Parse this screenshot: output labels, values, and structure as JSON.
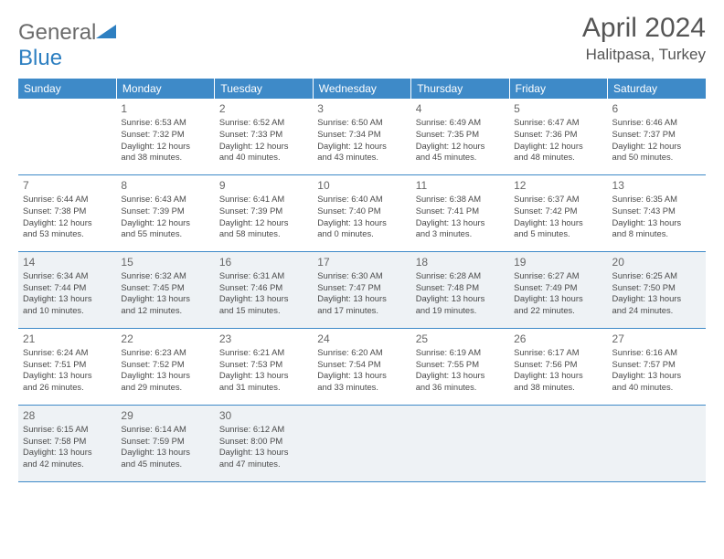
{
  "logo": {
    "part1": "General",
    "part2": "Blue"
  },
  "title": "April 2024",
  "location": "Halitpasa, Turkey",
  "header_bg": "#3e8ac8",
  "header_fg": "#ffffff",
  "shaded_bg": "#eef2f5",
  "border_color": "#3e8ac8",
  "text_color": "#4a4a4a",
  "columns": [
    "Sunday",
    "Monday",
    "Tuesday",
    "Wednesday",
    "Thursday",
    "Friday",
    "Saturday"
  ],
  "weeks": [
    {
      "shaded": false,
      "cells": [
        null,
        {
          "day": "1",
          "sunrise": "6:53 AM",
          "sunset": "7:32 PM",
          "daylight_h": "12",
          "daylight_m": "38"
        },
        {
          "day": "2",
          "sunrise": "6:52 AM",
          "sunset": "7:33 PM",
          "daylight_h": "12",
          "daylight_m": "40"
        },
        {
          "day": "3",
          "sunrise": "6:50 AM",
          "sunset": "7:34 PM",
          "daylight_h": "12",
          "daylight_m": "43"
        },
        {
          "day": "4",
          "sunrise": "6:49 AM",
          "sunset": "7:35 PM",
          "daylight_h": "12",
          "daylight_m": "45"
        },
        {
          "day": "5",
          "sunrise": "6:47 AM",
          "sunset": "7:36 PM",
          "daylight_h": "12",
          "daylight_m": "48"
        },
        {
          "day": "6",
          "sunrise": "6:46 AM",
          "sunset": "7:37 PM",
          "daylight_h": "12",
          "daylight_m": "50"
        }
      ]
    },
    {
      "shaded": false,
      "cells": [
        {
          "day": "7",
          "sunrise": "6:44 AM",
          "sunset": "7:38 PM",
          "daylight_h": "12",
          "daylight_m": "53"
        },
        {
          "day": "8",
          "sunrise": "6:43 AM",
          "sunset": "7:39 PM",
          "daylight_h": "12",
          "daylight_m": "55"
        },
        {
          "day": "9",
          "sunrise": "6:41 AM",
          "sunset": "7:39 PM",
          "daylight_h": "12",
          "daylight_m": "58"
        },
        {
          "day": "10",
          "sunrise": "6:40 AM",
          "sunset": "7:40 PM",
          "daylight_h": "13",
          "daylight_m": "0"
        },
        {
          "day": "11",
          "sunrise": "6:38 AM",
          "sunset": "7:41 PM",
          "daylight_h": "13",
          "daylight_m": "3"
        },
        {
          "day": "12",
          "sunrise": "6:37 AM",
          "sunset": "7:42 PM",
          "daylight_h": "13",
          "daylight_m": "5"
        },
        {
          "day": "13",
          "sunrise": "6:35 AM",
          "sunset": "7:43 PM",
          "daylight_h": "13",
          "daylight_m": "8"
        }
      ]
    },
    {
      "shaded": true,
      "cells": [
        {
          "day": "14",
          "sunrise": "6:34 AM",
          "sunset": "7:44 PM",
          "daylight_h": "13",
          "daylight_m": "10"
        },
        {
          "day": "15",
          "sunrise": "6:32 AM",
          "sunset": "7:45 PM",
          "daylight_h": "13",
          "daylight_m": "12"
        },
        {
          "day": "16",
          "sunrise": "6:31 AM",
          "sunset": "7:46 PM",
          "daylight_h": "13",
          "daylight_m": "15"
        },
        {
          "day": "17",
          "sunrise": "6:30 AM",
          "sunset": "7:47 PM",
          "daylight_h": "13",
          "daylight_m": "17"
        },
        {
          "day": "18",
          "sunrise": "6:28 AM",
          "sunset": "7:48 PM",
          "daylight_h": "13",
          "daylight_m": "19"
        },
        {
          "day": "19",
          "sunrise": "6:27 AM",
          "sunset": "7:49 PM",
          "daylight_h": "13",
          "daylight_m": "22"
        },
        {
          "day": "20",
          "sunrise": "6:25 AM",
          "sunset": "7:50 PM",
          "daylight_h": "13",
          "daylight_m": "24"
        }
      ]
    },
    {
      "shaded": false,
      "cells": [
        {
          "day": "21",
          "sunrise": "6:24 AM",
          "sunset": "7:51 PM",
          "daylight_h": "13",
          "daylight_m": "26"
        },
        {
          "day": "22",
          "sunrise": "6:23 AM",
          "sunset": "7:52 PM",
          "daylight_h": "13",
          "daylight_m": "29"
        },
        {
          "day": "23",
          "sunrise": "6:21 AM",
          "sunset": "7:53 PM",
          "daylight_h": "13",
          "daylight_m": "31"
        },
        {
          "day": "24",
          "sunrise": "6:20 AM",
          "sunset": "7:54 PM",
          "daylight_h": "13",
          "daylight_m": "33"
        },
        {
          "day": "25",
          "sunrise": "6:19 AM",
          "sunset": "7:55 PM",
          "daylight_h": "13",
          "daylight_m": "36"
        },
        {
          "day": "26",
          "sunrise": "6:17 AM",
          "sunset": "7:56 PM",
          "daylight_h": "13",
          "daylight_m": "38"
        },
        {
          "day": "27",
          "sunrise": "6:16 AM",
          "sunset": "7:57 PM",
          "daylight_h": "13",
          "daylight_m": "40"
        }
      ]
    },
    {
      "shaded": true,
      "cells": [
        {
          "day": "28",
          "sunrise": "6:15 AM",
          "sunset": "7:58 PM",
          "daylight_h": "13",
          "daylight_m": "42"
        },
        {
          "day": "29",
          "sunrise": "6:14 AM",
          "sunset": "7:59 PM",
          "daylight_h": "13",
          "daylight_m": "45"
        },
        {
          "day": "30",
          "sunrise": "6:12 AM",
          "sunset": "8:00 PM",
          "daylight_h": "13",
          "daylight_m": "47"
        },
        null,
        null,
        null,
        null
      ]
    }
  ],
  "labels": {
    "sunrise": "Sunrise:",
    "sunset": "Sunset:",
    "daylight_pre": "Daylight:",
    "hours": "hours",
    "and": "and",
    "minutes": "minutes."
  }
}
